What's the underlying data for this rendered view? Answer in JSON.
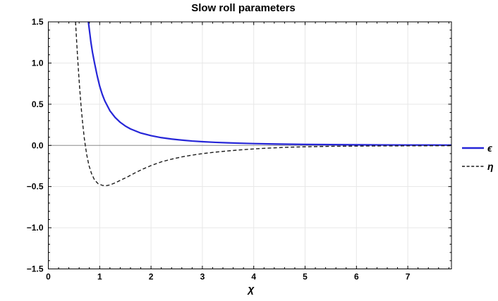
{
  "chart_data": {
    "type": "line",
    "title": "Slow roll parameters",
    "xlabel": "χ",
    "ylabel": "",
    "xlim": [
      0,
      7.85
    ],
    "ylim": [
      -1.5,
      1.5
    ],
    "grid": true,
    "legend_position": "right-outside",
    "x_major_ticks": [
      0,
      1,
      2,
      3,
      4,
      5,
      6,
      7
    ],
    "x_tick_labels": [
      "0",
      "1",
      "2",
      "3",
      "4",
      "5",
      "6",
      "7"
    ],
    "x_minor_step": 0.2,
    "y_major_ticks": [
      -1.5,
      -1.0,
      -0.5,
      0.0,
      0.5,
      1.0,
      1.5
    ],
    "y_tick_labels": [
      "−1.5",
      "−1.0",
      "−0.5",
      "0.0",
      "0.5",
      "1.0",
      "1.5"
    ],
    "y_minor_step": 0.1,
    "colors": {
      "grid": "#e7e7e7",
      "zero_axis": "#8a8a8a",
      "frame": "#000000",
      "epsilon": "#2626d8",
      "eta": "#1a1a1a"
    },
    "series": [
      {
        "name": "ϵ",
        "color": "#2626d8",
        "style": "solid",
        "width": 2.2,
        "x": [
          0.78,
          0.8,
          0.83,
          0.86,
          0.9,
          0.95,
          1.0,
          1.05,
          1.1,
          1.2,
          1.3,
          1.4,
          1.5,
          1.6,
          1.8,
          2.0,
          2.2,
          2.4,
          2.6,
          2.8,
          3.0,
          3.25,
          3.5,
          3.75,
          4.0,
          4.5,
          5.0,
          5.5,
          6.0,
          6.5,
          7.0,
          7.5,
          7.85
        ],
        "y": [
          1.5,
          1.4,
          1.25,
          1.13,
          1.0,
          0.85,
          0.72,
          0.62,
          0.54,
          0.42,
          0.34,
          0.28,
          0.235,
          0.2,
          0.15,
          0.118,
          0.094,
          0.077,
          0.064,
          0.053,
          0.045,
          0.037,
          0.031,
          0.026,
          0.022,
          0.016,
          0.012,
          0.0095,
          0.0075,
          0.006,
          0.005,
          0.004,
          0.0035
        ]
      },
      {
        "name": "η",
        "color": "#1a1a1a",
        "style": "dashed",
        "width": 1.4,
        "x": [
          0.53,
          0.55,
          0.57,
          0.59,
          0.61,
          0.64,
          0.67,
          0.7,
          0.72,
          0.75,
          0.79,
          0.84,
          0.9,
          0.97,
          1.05,
          1.12,
          1.2,
          1.3,
          1.4,
          1.55,
          1.7,
          1.85,
          2.0,
          2.2,
          2.4,
          2.6,
          2.8,
          3.0,
          3.25,
          3.5,
          3.75,
          4.0,
          4.25,
          4.5,
          4.75,
          5.0,
          5.5,
          6.0,
          6.5,
          7.0,
          7.5,
          7.85
        ],
        "y": [
          1.5,
          1.28,
          1.07,
          0.88,
          0.7,
          0.46,
          0.26,
          0.09,
          0.0,
          -0.12,
          -0.24,
          -0.34,
          -0.42,
          -0.465,
          -0.485,
          -0.49,
          -0.48,
          -0.455,
          -0.425,
          -0.38,
          -0.33,
          -0.285,
          -0.245,
          -0.2,
          -0.167,
          -0.14,
          -0.118,
          -0.1,
          -0.082,
          -0.067,
          -0.054,
          -0.043,
          -0.034,
          -0.027,
          -0.021,
          -0.017,
          -0.011,
          -0.008,
          -0.006,
          -0.005,
          -0.004,
          -0.0035
        ]
      }
    ]
  }
}
